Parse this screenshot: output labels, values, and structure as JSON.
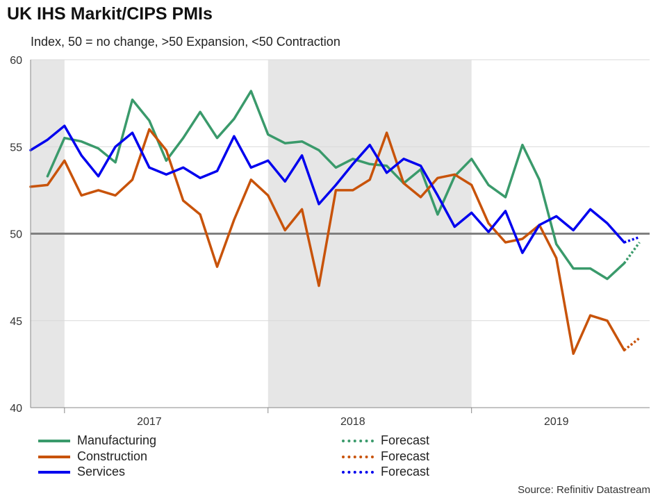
{
  "title": "UK IHS Markit/CIPS PMIs",
  "subtitle": "Index, 50 = no change, >50 Expansion,  <50 Contraction",
  "source": "Source: Refinitiv Datastream",
  "colors": {
    "manufacturing": "#3a9a6b",
    "construction": "#c8530a",
    "services": "#0000ee",
    "grid": "#d9d9d9",
    "reference": "#808080",
    "shade": "#e6e6e6"
  },
  "chart_data": {
    "type": "line",
    "title": "UK IHS Markit/CIPS PMIs",
    "ylabel": "Index, 50 = no change, >50 Expansion,  <50 Contraction",
    "ylim": [
      40,
      60
    ],
    "yticks": [
      40,
      45,
      50,
      55,
      60
    ],
    "xlim": [
      0,
      36.5
    ],
    "xticks": [
      {
        "label": "2017",
        "pos": 7
      },
      {
        "label": "2018",
        "pos": 19
      },
      {
        "label": "2019",
        "pos": 31
      }
    ],
    "year_boundaries": [
      2,
      14,
      26
    ],
    "shaded_ranges": [
      [
        0,
        2
      ],
      [
        14,
        26
      ]
    ],
    "reference_line": 50,
    "legend": [
      {
        "label": "Manufacturing",
        "series": "manufacturing",
        "style": "solid"
      },
      {
        "label": "Construction",
        "series": "construction",
        "style": "solid"
      },
      {
        "label": "Services",
        "series": "services",
        "style": "solid"
      },
      {
        "label": "Forecast",
        "series": "manufacturing",
        "style": "dotted"
      },
      {
        "label": "Forecast",
        "series": "construction",
        "style": "dotted"
      },
      {
        "label": "Forecast",
        "series": "services",
        "style": "dotted"
      }
    ],
    "series": [
      {
        "name": "Manufacturing",
        "key": "manufacturing",
        "x_start": 1,
        "values": [
          53.3,
          55.5,
          55.3,
          54.9,
          54.1,
          57.7,
          56.5,
          54.2,
          55.5,
          57.0,
          55.5,
          56.6,
          58.2,
          55.7,
          55.2,
          55.3,
          54.8,
          53.8,
          54.3,
          54.0,
          53.9,
          52.9,
          53.7,
          51.1,
          53.3,
          54.3,
          52.8,
          52.1,
          55.1,
          53.1,
          49.4,
          48.0,
          48.0,
          47.4,
          48.3
        ],
        "forecast_values": [
          48.3,
          49.5
        ]
      },
      {
        "name": "Construction",
        "key": "construction",
        "x_start": 0,
        "values": [
          52.7,
          52.8,
          54.2,
          52.2,
          52.5,
          52.2,
          53.1,
          56.0,
          54.8,
          51.9,
          51.1,
          48.1,
          50.8,
          53.1,
          52.2,
          50.2,
          51.4,
          47.0,
          52.5,
          52.5,
          53.1,
          55.8,
          52.9,
          52.1,
          53.2,
          53.4,
          52.8,
          50.6,
          49.5,
          49.7,
          50.5,
          48.6,
          43.1,
          45.3,
          45.0,
          43.3
        ],
        "forecast_values": [
          43.3,
          44.0
        ]
      },
      {
        "name": "Services",
        "key": "services",
        "x_start": 0,
        "values": [
          54.8,
          55.4,
          56.2,
          54.5,
          53.3,
          55.0,
          55.8,
          53.8,
          53.4,
          53.8,
          53.2,
          53.6,
          55.6,
          53.8,
          54.2,
          53.0,
          54.5,
          51.7,
          52.8,
          54.0,
          55.1,
          53.5,
          54.3,
          53.9,
          52.2,
          50.4,
          51.2,
          50.1,
          51.3,
          48.9,
          50.5,
          51.0,
          50.2,
          51.4,
          50.6,
          49.5
        ],
        "forecast_values": [
          49.5,
          49.8
        ]
      }
    ]
  }
}
